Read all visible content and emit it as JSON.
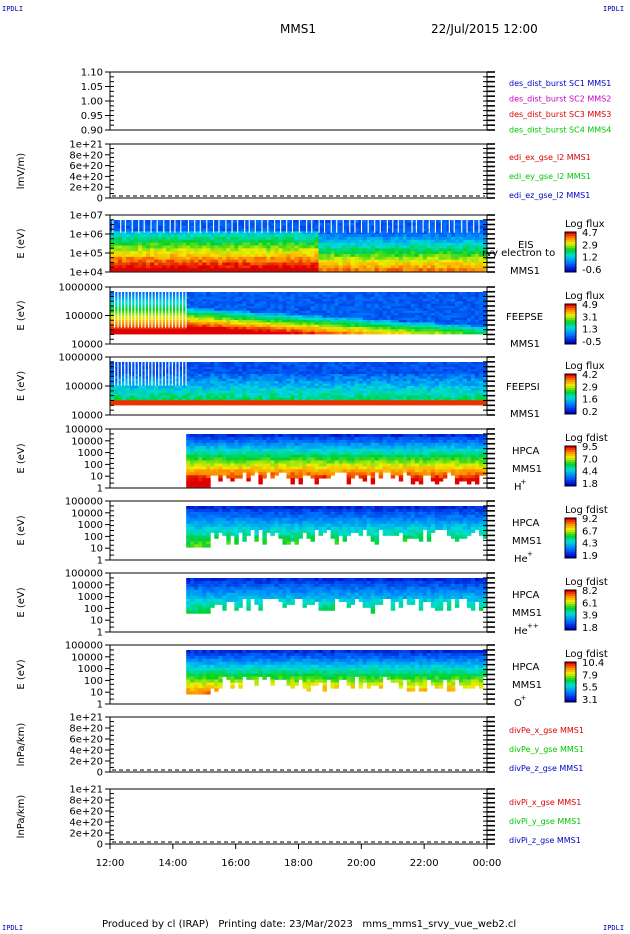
{
  "page": {
    "corner_label": "IPDLI",
    "mission": "MMS1",
    "datetime": "22/Jul/2015 12:00",
    "footer": "Produced by cl (IRAP)   Printing date: 23/Mar/2023   mms_mms1_srvy_vue_web2.cl"
  },
  "colors": {
    "blue": "#0000c8",
    "magenta": "#c800c8",
    "red": "#dc0000",
    "green": "#00c800",
    "frame": "#000000"
  },
  "chart_data": [
    {
      "type": "line",
      "ylim": [
        0.9,
        1.1
      ],
      "yticks": [
        "1.10",
        "1.05",
        "1.00",
        "0.95",
        "0.90"
      ],
      "ylabel": "",
      "legend": [
        {
          "text": "des_dist_burst SC1 MMS1",
          "color": "blue"
        },
        {
          "text": "des_dist_burst SC2 MMS2",
          "color": "magenta"
        },
        {
          "text": "des_dist_burst SC3 MMS3",
          "color": "red"
        },
        {
          "text": "des_dist_burst SC4 MMS4",
          "color": "green"
        }
      ],
      "series": []
    },
    {
      "type": "line",
      "ylim": [
        0,
        1e+21
      ],
      "yticks": [
        "1e+21",
        "8e+20",
        "6e+20",
        "4e+20",
        "2e+20",
        "0"
      ],
      "ylabel": "lmV/m)",
      "zero_line": true,
      "legend": [
        {
          "text": "edi_ex_gse_l2 MMS1",
          "color": "red"
        },
        {
          "text": "edi_ey_gse_l2 MMS1",
          "color": "green"
        },
        {
          "text": "edi_ez_gse_l2 MMS1",
          "color": "blue"
        }
      ],
      "series": []
    },
    {
      "type": "heatmap",
      "ylabel": "E (eV)",
      "yticks": [
        "1e+07",
        "1e+06",
        "1e+05",
        "1e+04"
      ],
      "instrument": [
        "EIS",
        "MMS1"
      ],
      "overflow_label": "rvy electron to",
      "colorbar": {
        "title": "Log flux",
        "labels": [
          "4.7",
          "2.9",
          "1.2",
          "-0.6"
        ]
      }
    },
    {
      "type": "heatmap",
      "ylabel": "E (eV)",
      "yticks": [
        "1000000",
        "100000",
        "10000"
      ],
      "instrument": [
        "FEEPSE",
        "MMS1"
      ],
      "colorbar": {
        "title": "Log flux",
        "labels": [
          "4.9",
          "3.1",
          "1.3",
          "-0.5"
        ]
      }
    },
    {
      "type": "heatmap",
      "ylabel": "E (eV)",
      "yticks": [
        "1000000",
        "100000",
        "10000"
      ],
      "instrument": [
        "FEEPSI",
        "MMS1"
      ],
      "colorbar": {
        "title": "Log flux",
        "labels": [
          "4.2",
          "2.9",
          "1.6",
          "0.2"
        ]
      }
    },
    {
      "type": "heatmap",
      "ylabel": "E (eV)",
      "yticks": [
        "100000",
        "10000",
        "1000",
        "100",
        "10",
        "1"
      ],
      "instrument": [
        "HPCA",
        "MMS1"
      ],
      "species": "H",
      "charge": "+",
      "colorbar": {
        "title": "Log fdist",
        "labels": [
          "9.5",
          "7.0",
          "4.4",
          "1.8"
        ]
      }
    },
    {
      "type": "heatmap",
      "ylabel": "E (eV)",
      "yticks": [
        "100000",
        "10000",
        "1000",
        "100",
        "10",
        "1"
      ],
      "instrument": [
        "HPCA",
        "MMS1"
      ],
      "species": "He",
      "charge": "+",
      "colorbar": {
        "title": "Log fdist",
        "labels": [
          "9.2",
          "6.7",
          "4.3",
          "1.9"
        ]
      }
    },
    {
      "type": "heatmap",
      "ylabel": "E (eV)",
      "yticks": [
        "100000",
        "10000",
        "1000",
        "100",
        "10",
        "1"
      ],
      "instrument": [
        "HPCA",
        "MMS1"
      ],
      "species": "He",
      "charge": "++",
      "colorbar": {
        "title": "Log fdist",
        "labels": [
          "8.2",
          "6.1",
          "3.9",
          "1.8"
        ]
      }
    },
    {
      "type": "heatmap",
      "ylabel": "E (eV)",
      "yticks": [
        "100000",
        "10000",
        "1000",
        "100",
        "10",
        "1"
      ],
      "instrument": [
        "HPCA",
        "MMS1"
      ],
      "species": "O",
      "charge": "+",
      "colorbar": {
        "title": "Log fdist",
        "labels": [
          "10.4",
          "7.9",
          "5.5",
          "3.1"
        ]
      }
    },
    {
      "type": "line",
      "ylim": [
        0,
        1e+21
      ],
      "yticks": [
        "1e+21",
        "8e+20",
        "6e+20",
        "4e+20",
        "2e+20",
        "0"
      ],
      "ylabel": "lnPa/km)",
      "zero_line": true,
      "legend": [
        {
          "text": "divPe_x_gse MMS1",
          "color": "red"
        },
        {
          "text": "divPe_y_gse MMS1",
          "color": "green"
        },
        {
          "text": "divPe_z_gse MMS1",
          "color": "blue"
        }
      ],
      "series": []
    },
    {
      "type": "line",
      "ylim": [
        0,
        1e+21
      ],
      "yticks": [
        "1e+21",
        "8e+20",
        "6e+20",
        "4e+20",
        "2e+20",
        "0"
      ],
      "ylabel": "lnPa/km)",
      "zero_line": true,
      "legend": [
        {
          "text": "divPi_x_gse MMS1",
          "color": "red"
        },
        {
          "text": "divPi_y_gse MMS1",
          "color": "green"
        },
        {
          "text": "divPi_z_gse MMS1",
          "color": "blue"
        }
      ],
      "series": []
    }
  ],
  "time_axis": {
    "ticks": [
      "12:00",
      "14:00",
      "16:00",
      "18:00",
      "20:00",
      "22:00",
      "00:00"
    ],
    "hpca_start": "14:30"
  }
}
